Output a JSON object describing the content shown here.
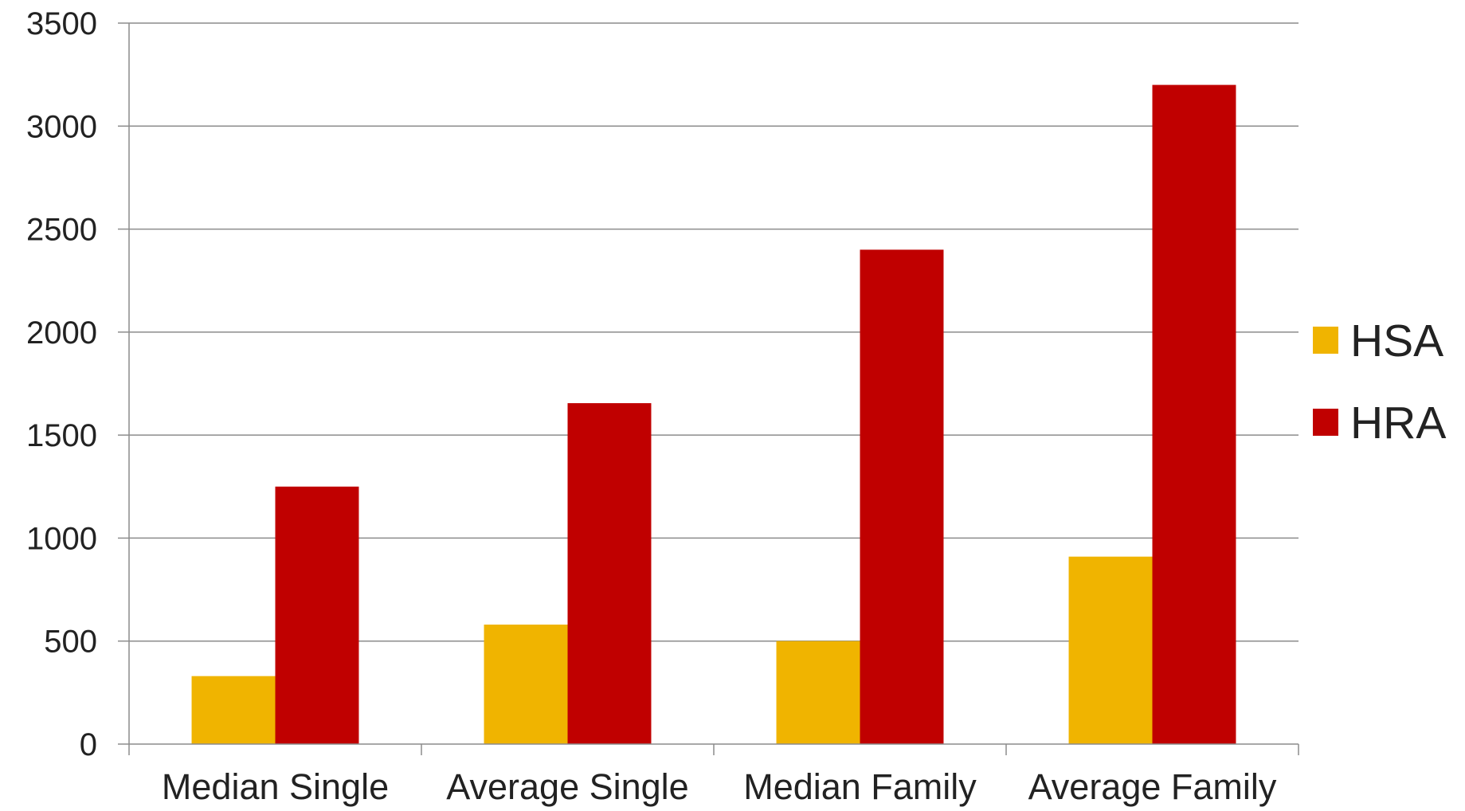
{
  "chart_data": {
    "type": "bar",
    "title": "",
    "xlabel": "",
    "ylabel": "",
    "categories": [
      "Median Single",
      "Average Single",
      "Median Family",
      "Average Family"
    ],
    "series": [
      {
        "name": "HSA",
        "color": "#F0B400",
        "values": [
          330,
          580,
          500,
          910
        ]
      },
      {
        "name": "HRA",
        "color": "#C00000",
        "values": [
          1250,
          1655,
          2400,
          3200
        ]
      }
    ],
    "ylim": [
      0,
      3500
    ],
    "yticks": [
      0,
      500,
      1000,
      1500,
      2000,
      2500,
      3000,
      3500
    ],
    "grid": true,
    "legend_position": "right"
  }
}
